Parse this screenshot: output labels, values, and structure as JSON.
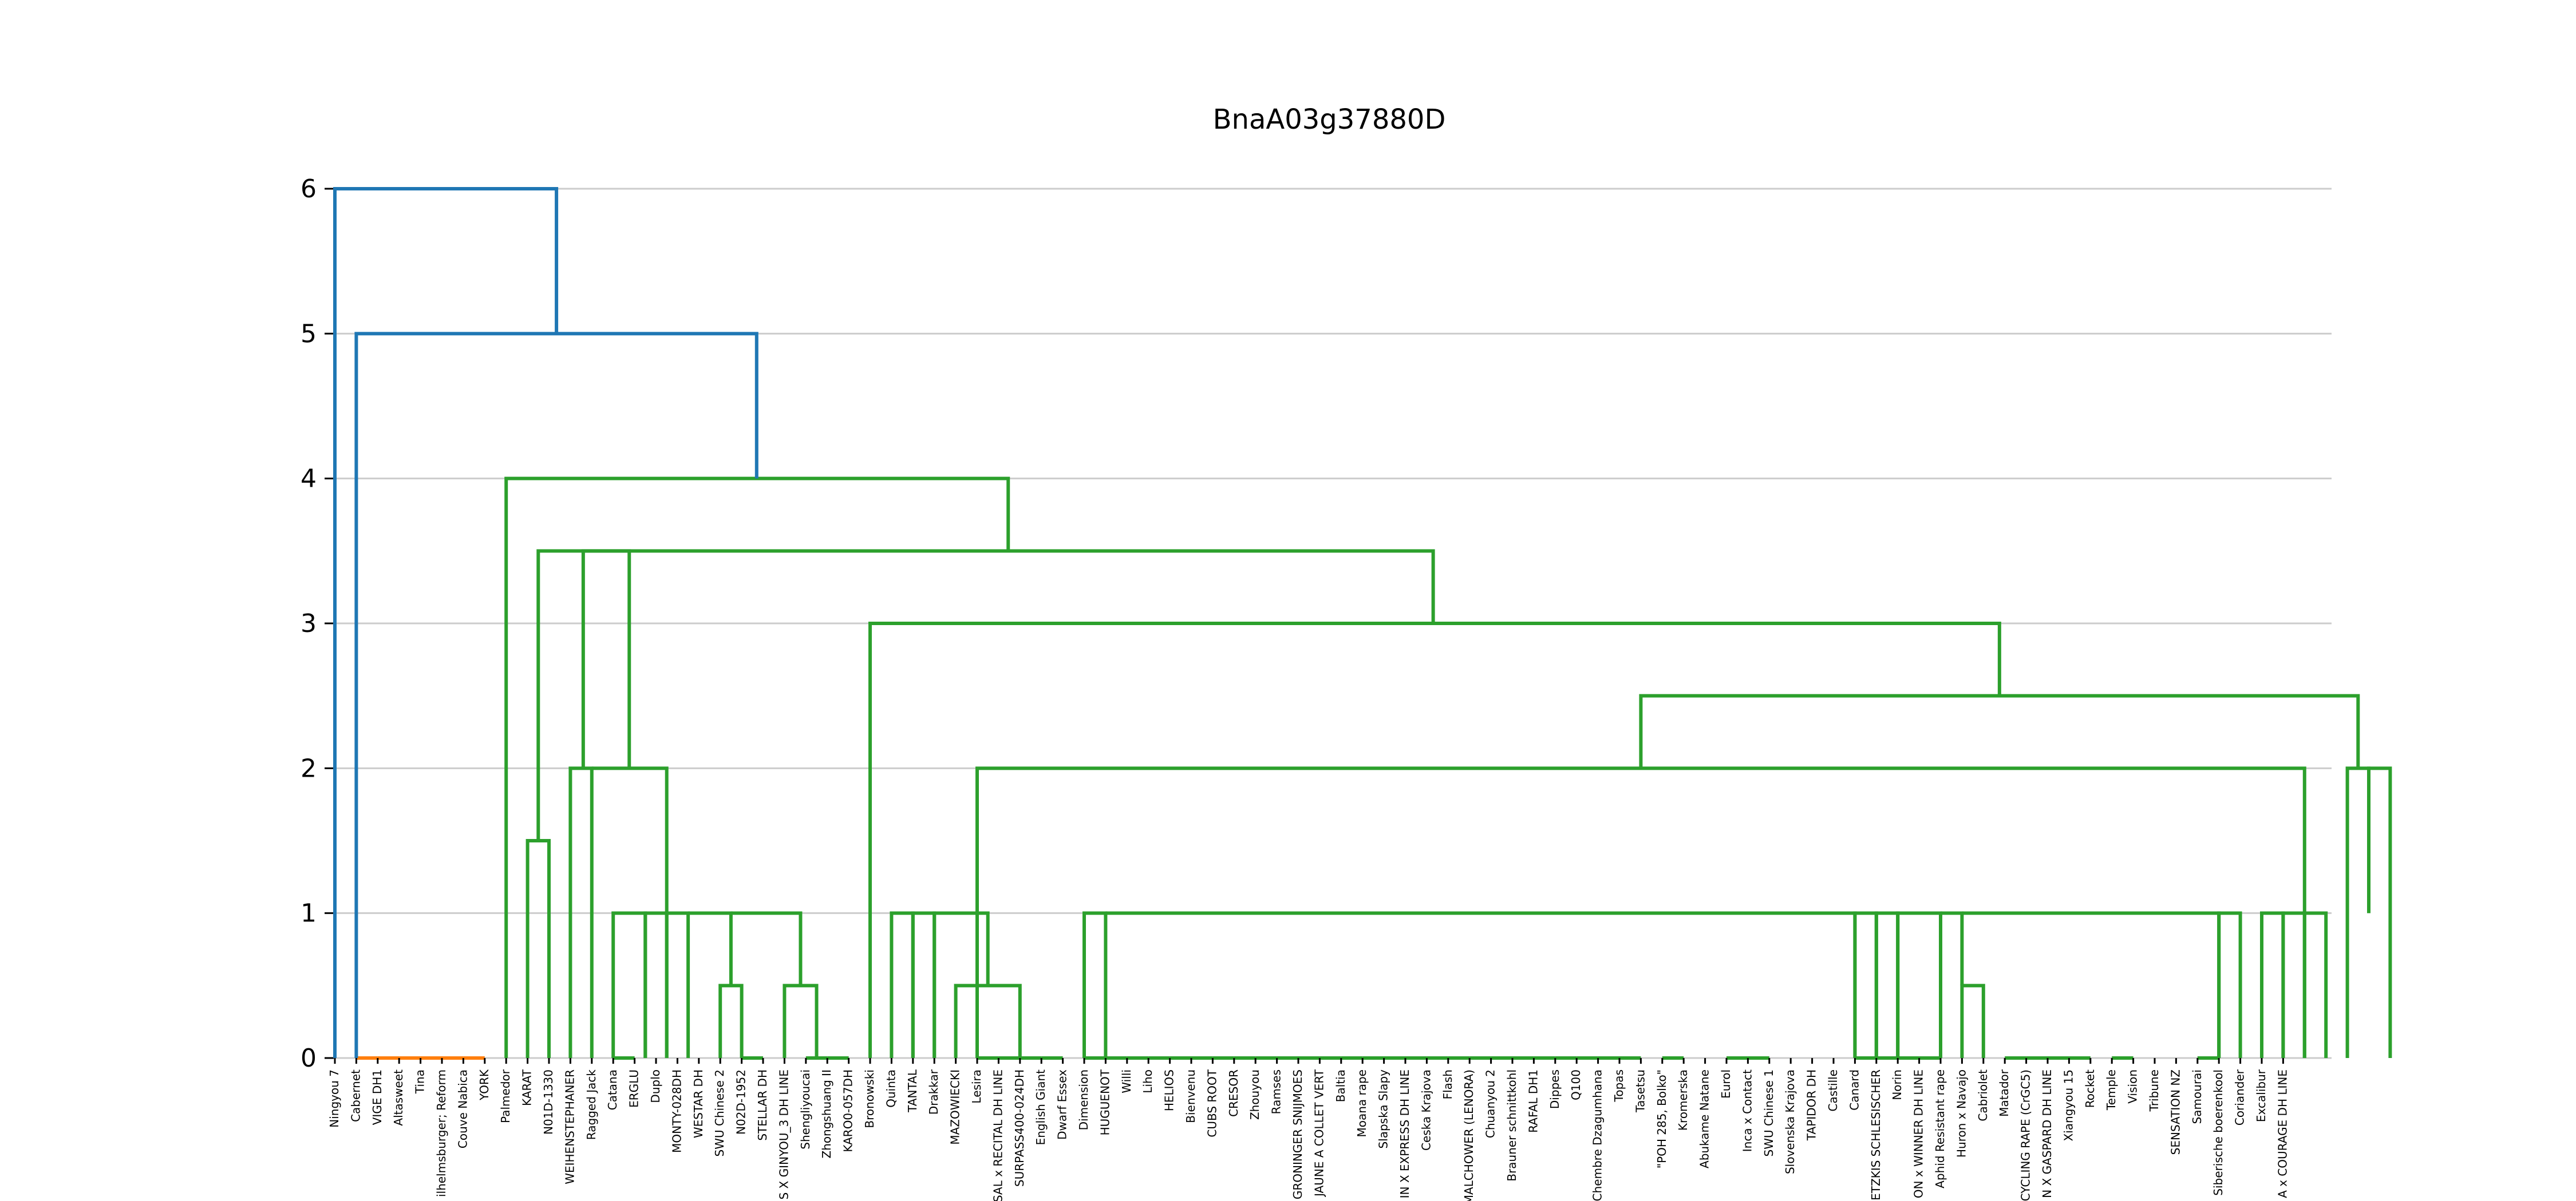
{
  "chart_data": {
    "type": "dendrogram",
    "title": "BnaA03g37880D",
    "xlabel": "",
    "ylabel": "",
    "ylim": [
      0,
      6
    ],
    "yticks": [
      0,
      1,
      2,
      3,
      4,
      5,
      6
    ],
    "grid": "horizontal",
    "colors": {
      "default": "#1f77b4",
      "cluster_1": "#ff7f0e",
      "cluster_2": "#2ca02c"
    },
    "leaves": [
      "Ningyou 7",
      "Cabernet",
      "VIGE DH1",
      "Altasweet",
      "Tina",
      "ilhelmsburger; Reform",
      "Couve Nabica",
      "YORK",
      "Palmedor",
      "KARAT",
      "N01D-1330",
      "WEIHENSTEPHANER",
      "Ragged Jack",
      "Catana",
      "ERGLU",
      "Duplo",
      "MONTY-028DH",
      "WESTAR DH",
      "SWU Chinese 2",
      "N02D-1952",
      "STELLAR DH",
      "S X GINYOU_3 DH LINE",
      "Shengliyoucai",
      "Zhongshuang II",
      "KARO0-057DH",
      "Bronowski",
      "Quinta",
      "TANTAL",
      "Drakkar",
      "MAZOWIECKI",
      "Lesira",
      "SAL x RECITAL DH LINE",
      "SURPASS400-024DH",
      "English Giant",
      "Dwarf Essex",
      "Dimension",
      "HUGUENOT",
      "Willi",
      "Liho",
      "HELIOS",
      "Bienvenu",
      "CUBS ROOT",
      "CRESOR",
      "Zhouyou",
      "Ramses",
      "GRONINGER SNIJMOES",
      "JAUNE A COLLET VERT",
      "Baltia",
      "Moana rape",
      "Slapska Slapy",
      "IN X EXPRESS DH LINE",
      "Ceska Krajova",
      "Flash",
      "MALCHOWER (LENORA)",
      "Chuanyou 2",
      "Brauner schnittkohl",
      "RAFAL DH1",
      "Dippes",
      "Q100",
      "Chembre Dzagumhana",
      "Topas",
      "Tasetsu",
      "\"POH 285, Bolko\"",
      "Kromerska",
      "Abukame Natane",
      "Eurol",
      "Inca x Contact",
      "SWU Chinese 1",
      "Slovenska Krajova",
      "TAPIDOR DH",
      "Castille",
      "Canard",
      "ETZKIS SCHLESISCHER",
      "Norin",
      "ON x WINNER DH LINE",
      "Aphid Resistant rape",
      "Huron x Navajo",
      "Cabriolet",
      "Matador",
      "CYCLING RAPE (CrGC5)",
      "N X GASPARD DH LINE",
      "Xiangyou 15",
      "Rocket",
      "Temple",
      "Vision",
      "Tribune",
      "SENSATION NZ",
      "Samourai",
      "Siberische boerenkool",
      "Coriander",
      "Excalibur",
      "A x COURAGE DH LINE"
    ],
    "links": [
      {
        "x": [
          31,
          40,
          40,
          43
        ],
        "y": [
          0,
          1,
          1,
          0
        ]
      },
      {
        "x": [
          71,
          73,
          73,
          75
        ],
        "y": [
          0,
          1,
          1,
          0
        ]
      },
      {
        "x": [
          65,
          74,
          74,
          76
        ],
        "y": [
          0,
          1,
          1,
          0
        ]
      },
      {
        "x": [
          59,
          70.5,
          70.5,
          77
        ],
        "y": [
          0,
          1,
          1,
          0
        ]
      },
      {
        "x": [
          78,
          79.5,
          79.5,
          81
        ],
        "y": [
          0,
          1,
          1,
          0
        ]
      },
      {
        "x": [
          82,
          83.5,
          83.5,
          85
        ],
        "y": [
          0,
          1,
          1,
          0
        ]
      },
      {
        "x": [
          86,
          87.5,
          87.5,
          89
        ],
        "y": [
          0,
          1,
          1,
          0
        ]
      },
      {
        "x": [
          90,
          91.5,
          91.5,
          93
        ],
        "y": [
          0,
          1,
          1,
          0
        ]
      },
      {
        "x": [
          94,
          95.5,
          95.5,
          97
        ],
        "y": [
          0,
          1,
          1,
          0
        ]
      },
      {
        "x": [
          98,
          99.5,
          99.5,
          101
        ],
        "y": [
          0,
          1,
          1,
          0
        ]
      },
      {
        "x": [
          102,
          103.5,
          103.5,
          105
        ],
        "y": [
          0,
          1,
          1,
          0
        ]
      },
      {
        "x": [
          106,
          107.5,
          107.5,
          109
        ],
        "y": [
          0,
          1,
          1,
          0
        ]
      },
      {
        "x": [
          110,
          111.5,
          111.5,
          113
        ],
        "y": [
          0,
          1,
          1,
          0
        ]
      },
      {
        "x": [
          114,
          115.5,
          115.5,
          117
        ],
        "y": [
          0,
          1,
          1,
          0
        ]
      },
      {
        "x": [
          118,
          119.5,
          119.5,
          121
        ],
        "y": [
          0,
          1,
          1,
          0
        ]
      },
      {
        "x": [
          122,
          123.5,
          123.5,
          125
        ],
        "y": [
          0,
          1,
          1,
          0
        ]
      },
      {
        "x": [
          126,
          127.5,
          127.5,
          129
        ],
        "y": [
          0,
          1,
          1,
          0
        ]
      },
      {
        "x": [
          130,
          131.5,
          131.5,
          133
        ],
        "y": [
          0,
          1,
          1,
          0
        ]
      },
      {
        "x": [
          134,
          135.5,
          135.5,
          137
        ],
        "y": [
          0,
          1,
          1,
          0
        ]
      },
      {
        "x": [
          138,
          139.5,
          139.5,
          141
        ],
        "y": [
          0,
          1,
          1,
          0
        ]
      },
      {
        "x": [
          142,
          143.5,
          143.5,
          145
        ],
        "y": [
          0,
          1,
          1,
          0
        ]
      }
    ]
  }
}
